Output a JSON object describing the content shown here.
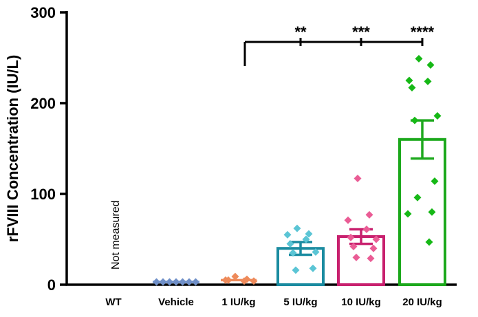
{
  "chart_data": {
    "type": "bar",
    "ylabel": "rFVIII Concentration (IU/L)",
    "xlabel": "",
    "ylim": [
      0,
      300
    ],
    "yticks": [
      0,
      100,
      200,
      300
    ],
    "ytick_labels": [
      "0",
      "100",
      "200",
      "300"
    ],
    "categories": [
      "WT",
      "Vehicle",
      "1 IU/kg",
      "5 IU/kg",
      "10 IU/kg",
      "20 IU/kg"
    ],
    "annotation": "Not measured",
    "groups": [
      {
        "name": "WT",
        "mean": null,
        "sem": null,
        "color": "#000000",
        "points": []
      },
      {
        "name": "Vehicle",
        "mean": 3,
        "sem": 0,
        "color": "#6F8FC8",
        "points": [
          3,
          3,
          3,
          3,
          3,
          3,
          3
        ]
      },
      {
        "name": "1 IU/kg",
        "mean": 5,
        "sem": 1,
        "color": "#EE8A5A",
        "points": [
          9,
          6,
          5,
          4,
          5,
          4
        ]
      },
      {
        "name": "5 IU/kg",
        "mean": 40,
        "sem": 7,
        "color": "#1A8BA0",
        "point_color": "#5BC5D5",
        "points": [
          62,
          56,
          55,
          50,
          45,
          36,
          35,
          18,
          16
        ]
      },
      {
        "name": "10 IU/kg",
        "mean": 53,
        "sem": 8,
        "color": "#C8206E",
        "point_color": "#EA5C95",
        "points": [
          117,
          77,
          71,
          61,
          52,
          50,
          42,
          40,
          30,
          29
        ]
      },
      {
        "name": "20 IU/kg",
        "mean": 160,
        "sem": 21,
        "color": "#1CA81C",
        "point_color": "#16B816",
        "points": [
          249,
          242,
          225,
          224,
          217,
          186,
          181,
          114,
          96,
          80,
          78,
          47
        ]
      }
    ],
    "comparisons": [
      {
        "from": "1 IU/kg",
        "to": "5 IU/kg",
        "label": "**"
      },
      {
        "from": "1 IU/kg",
        "to": "10 IU/kg",
        "label": "***"
      },
      {
        "from": "1 IU/kg",
        "to": "20 IU/kg",
        "label": "****"
      }
    ]
  }
}
